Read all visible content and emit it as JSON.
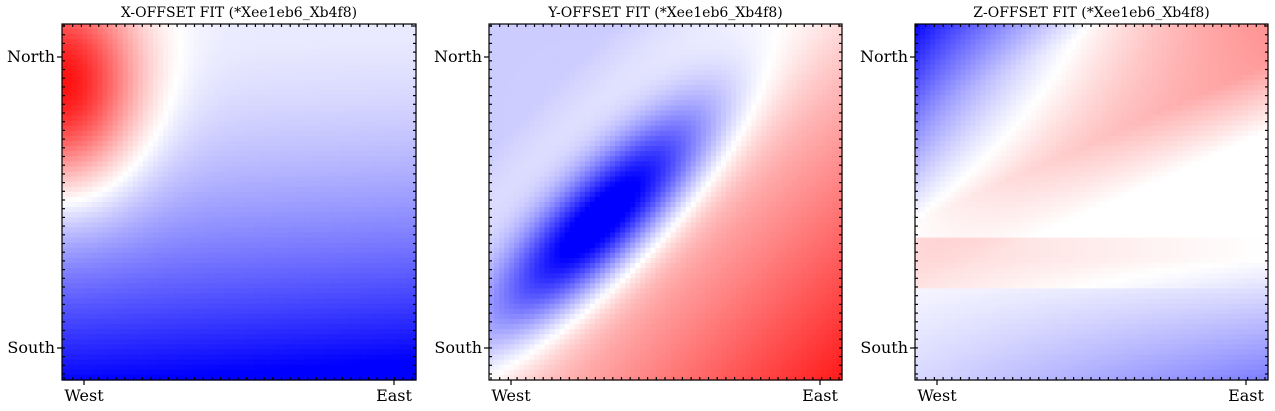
{
  "chart_data": [
    {
      "type": "heatmap",
      "title": "X-OFFSET FIT (*Xee1eb6_Xb4f8)",
      "xlabel": "",
      "ylabel": "",
      "x_ticks": [
        "West",
        "East"
      ],
      "y_ticks": [
        "North",
        "South"
      ],
      "colormap": "bwr",
      "grid": false,
      "field": "x_offset"
    },
    {
      "type": "heatmap",
      "title": "Y-OFFSET FIT (*Xee1eb6_Xb4f8)",
      "xlabel": "",
      "ylabel": "",
      "x_ticks": [
        "West",
        "East"
      ],
      "y_ticks": [
        "North",
        "South"
      ],
      "colormap": "bwr",
      "grid": false,
      "field": "y_offset"
    },
    {
      "type": "heatmap",
      "title": "Z-OFFSET FIT (*Xee1eb6_Xb4f8)",
      "xlabel": "",
      "ylabel": "",
      "x_ticks": [
        "West",
        "East"
      ],
      "y_ticks": [
        "North",
        "South"
      ],
      "colormap": "bwr",
      "grid": false,
      "field": "z_offset"
    }
  ],
  "colors": {
    "positive": "#ff0000",
    "zero": "#ffffff",
    "negative": "#0000ff",
    "frame": "#000000"
  }
}
